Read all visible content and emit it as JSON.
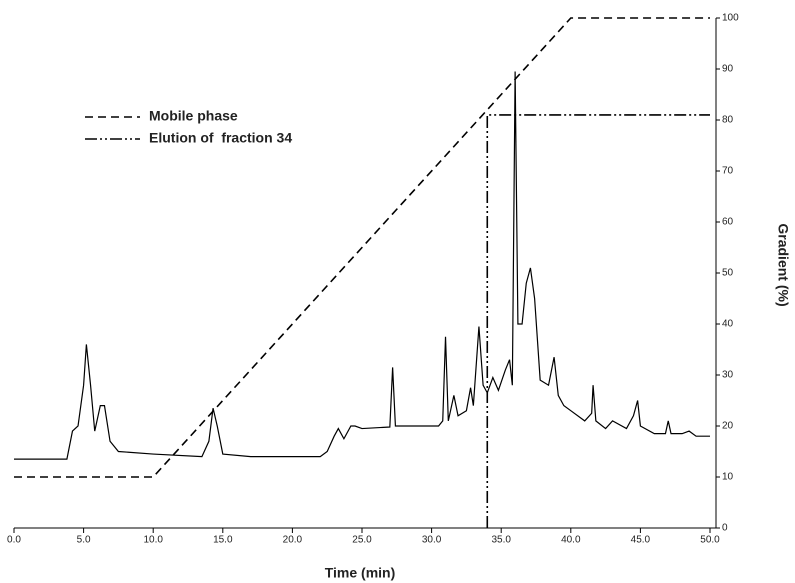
{
  "chart_data": {
    "type": "line",
    "xlabel": "Time (min)",
    "y2label": "Gradient (%)",
    "xlim": [
      0,
      50
    ],
    "ylim": [
      0,
      100
    ],
    "xticks": [
      {
        "value": 0,
        "label": "0.0"
      },
      {
        "value": 5,
        "label": "5.0"
      },
      {
        "value": 10,
        "label": "10.0"
      },
      {
        "value": 15,
        "label": "15.0"
      },
      {
        "value": 20,
        "label": "20.0"
      },
      {
        "value": 25,
        "label": "25.0"
      },
      {
        "value": 30,
        "label": "30.0"
      },
      {
        "value": 35,
        "label": "35.0"
      },
      {
        "value": 40,
        "label": "40.0"
      },
      {
        "value": 45,
        "label": "45.0"
      },
      {
        "value": 50,
        "label": "50.0"
      }
    ],
    "yticks": [
      0,
      10,
      20,
      30,
      40,
      50,
      60,
      70,
      80,
      90,
      100
    ],
    "legend": "upper left",
    "series": [
      {
        "name": "Mobile phase",
        "color": "#000000",
        "dash": "dashed",
        "x": [
          0,
          10,
          40,
          50
        ],
        "values": [
          10,
          10,
          100,
          100
        ]
      },
      {
        "name": "Elution of  fraction 34",
        "color": "#000000",
        "dash": "dashdotdot",
        "x": [
          34,
          34,
          50
        ],
        "values": [
          0,
          81,
          81
        ]
      },
      {
        "color": "#000000",
        "dash": "solid",
        "x": [
          0,
          3.8,
          4.2,
          4.6,
          5.0,
          5.2,
          5.5,
          5.8,
          6.2,
          6.5,
          6.9,
          7.5,
          10,
          13.5,
          14,
          14.3,
          14.6,
          15,
          17,
          22,
          22.5,
          23,
          23.3,
          23.7,
          24.2,
          24.5,
          25,
          27,
          27.2,
          27.4,
          29,
          30.5,
          30.8,
          31,
          31.2,
          31.6,
          31.9,
          32.5,
          32.8,
          33,
          33.4,
          33.7,
          34,
          34.4,
          34.8,
          35.3,
          35.6,
          35.8,
          36,
          36.2,
          36.5,
          36.8,
          37.1,
          37.4,
          37.8,
          38.4,
          38.8,
          39.1,
          39.5,
          40,
          41,
          41.5,
          41.6,
          41.8,
          42.5,
          43,
          44,
          44.5,
          44.8,
          45,
          46,
          46.8,
          47,
          47.2,
          48,
          48.5,
          49,
          50
        ],
        "values": [
          13.5,
          13.5,
          19,
          20,
          28,
          36,
          28,
          19,
          24,
          24,
          17,
          15,
          14.5,
          14,
          17,
          23.5,
          20,
          14.5,
          14,
          14,
          15,
          18,
          19.5,
          17.5,
          20,
          20,
          19.5,
          19.8,
          31.5,
          20,
          20,
          20,
          21,
          37.5,
          21,
          26,
          22,
          23,
          27.5,
          24,
          39.5,
          28,
          26.5,
          29.5,
          27,
          31,
          33,
          28,
          89.5,
          40,
          40,
          48,
          51,
          45,
          29,
          28,
          33.5,
          26,
          24,
          23,
          21,
          22.5,
          28,
          21,
          19.5,
          21,
          19.5,
          22,
          25,
          20,
          18.5,
          18.5,
          21,
          18.5,
          18.5,
          19,
          18,
          18
        ]
      }
    ]
  }
}
